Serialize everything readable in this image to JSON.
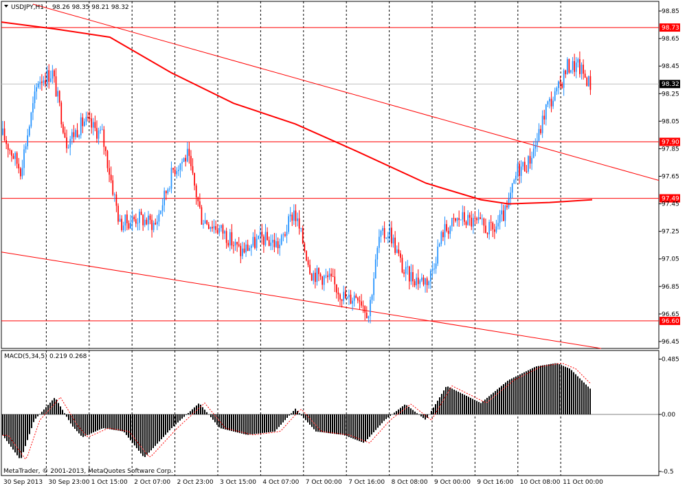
{
  "header": {
    "symbol": "USDJPY,H1",
    "ohlc": "98.26 98.35 98.21 98.32",
    "dropdown_icon": "triangle-down-icon"
  },
  "indicator": {
    "label": "MACD(5,34,5)",
    "values": "0.219 0.268"
  },
  "copyright": "MetaTrader, © 2001-2013, MetaQuotes Software Corp.",
  "colors": {
    "bull_candle": "#1E90FF",
    "bear_candle": "#FF0000",
    "line": "#FF0000",
    "histogram": "#000000",
    "signal": "#FF0000",
    "grid": "#000000",
    "current_price_line": "#C0C0C0"
  },
  "chart_data": [
    {
      "type": "candlestick",
      "title": "USDJPY,H1",
      "ylim": [
        96.4,
        98.92
      ],
      "y_ticks": [
        "98.85",
        "98.65",
        "98.45",
        "98.25",
        "98.05",
        "97.85",
        "97.65",
        "97.45",
        "97.25",
        "97.05",
        "96.85",
        "96.65",
        "96.45"
      ],
      "x_ticks": [
        "30 Sep 2013",
        "30 Sep 23:00",
        "1 Oct 15:00",
        "2 Oct 07:00",
        "2 Oct 23:00",
        "3 Oct 15:00",
        "4 Oct 07:00",
        "7 Oct 00:00",
        "7 Oct 16:00",
        "8 Oct 08:00",
        "9 Oct 00:00",
        "9 Oct 16:00",
        "10 Oct 08:00",
        "11 Oct 00:00"
      ],
      "grid": "vertical dashed",
      "horizontal_levels": [
        {
          "value": 98.73,
          "label": "98.73"
        },
        {
          "value": 97.9,
          "label": "97.90"
        },
        {
          "value": 97.49,
          "label": "97.49"
        },
        {
          "value": 96.6,
          "label": "96.60"
        }
      ],
      "current_price": {
        "value": 98.32,
        "label": "98.32"
      },
      "candles": {
        "count": 216,
        "description": "Hourly bars 30 Sep – 11 Oct 2013",
        "path_points": [
          {
            "x": 0,
            "y": 97.95
          },
          {
            "x": 10,
            "y": 97.7
          },
          {
            "x": 20,
            "y": 98.35
          },
          {
            "x": 28,
            "y": 98.4
          },
          {
            "x": 36,
            "y": 97.9
          },
          {
            "x": 46,
            "y": 98.05
          },
          {
            "x": 56,
            "y": 97.95
          },
          {
            "x": 66,
            "y": 97.3
          },
          {
            "x": 76,
            "y": 97.35
          },
          {
            "x": 86,
            "y": 97.3
          },
          {
            "x": 96,
            "y": 97.7
          },
          {
            "x": 104,
            "y": 97.8
          },
          {
            "x": 112,
            "y": 97.35
          },
          {
            "x": 124,
            "y": 97.25
          },
          {
            "x": 134,
            "y": 97.1
          },
          {
            "x": 146,
            "y": 97.2
          },
          {
            "x": 156,
            "y": 97.15
          },
          {
            "x": 164,
            "y": 97.4
          },
          {
            "x": 174,
            "y": 96.95
          },
          {
            "x": 184,
            "y": 96.9
          },
          {
            "x": 194,
            "y": 96.75
          },
          {
            "x": 200,
            "y": 96.8
          },
          {
            "x": 206,
            "y": 96.65
          },
          {
            "x": 212,
            "y": 97.2
          },
          {
            "x": 218,
            "y": 97.25
          },
          {
            "x": 226,
            "y": 96.95
          },
          {
            "x": 234,
            "y": 96.9
          },
          {
            "x": 240,
            "y": 96.9
          },
          {
            "x": 248,
            "y": 97.25
          },
          {
            "x": 258,
            "y": 97.35
          },
          {
            "x": 268,
            "y": 97.3
          },
          {
            "x": 276,
            "y": 97.25
          },
          {
            "x": 284,
            "y": 97.4
          },
          {
            "x": 290,
            "y": 97.7
          },
          {
            "x": 296,
            "y": 97.75
          },
          {
            "x": 302,
            "y": 97.95
          },
          {
            "x": 306,
            "y": 98.15
          },
          {
            "x": 312,
            "y": 98.25
          },
          {
            "x": 318,
            "y": 98.45
          },
          {
            "x": 324,
            "y": 98.45
          },
          {
            "x": 332,
            "y": 98.3
          }
        ]
      }
    },
    {
      "type": "histogram",
      "title": "MACD(5,34,5)",
      "ylim": [
        -0.5,
        0.5
      ],
      "y_ticks": [
        "0.485",
        "0.00",
        "-0.5"
      ],
      "series": [
        {
          "name": "MACD",
          "style": "bar",
          "values_description": "main histogram, last value 0.219"
        },
        {
          "name": "Signal",
          "style": "dotted line",
          "values_description": "signal, last value 0.268"
        }
      ]
    }
  ]
}
